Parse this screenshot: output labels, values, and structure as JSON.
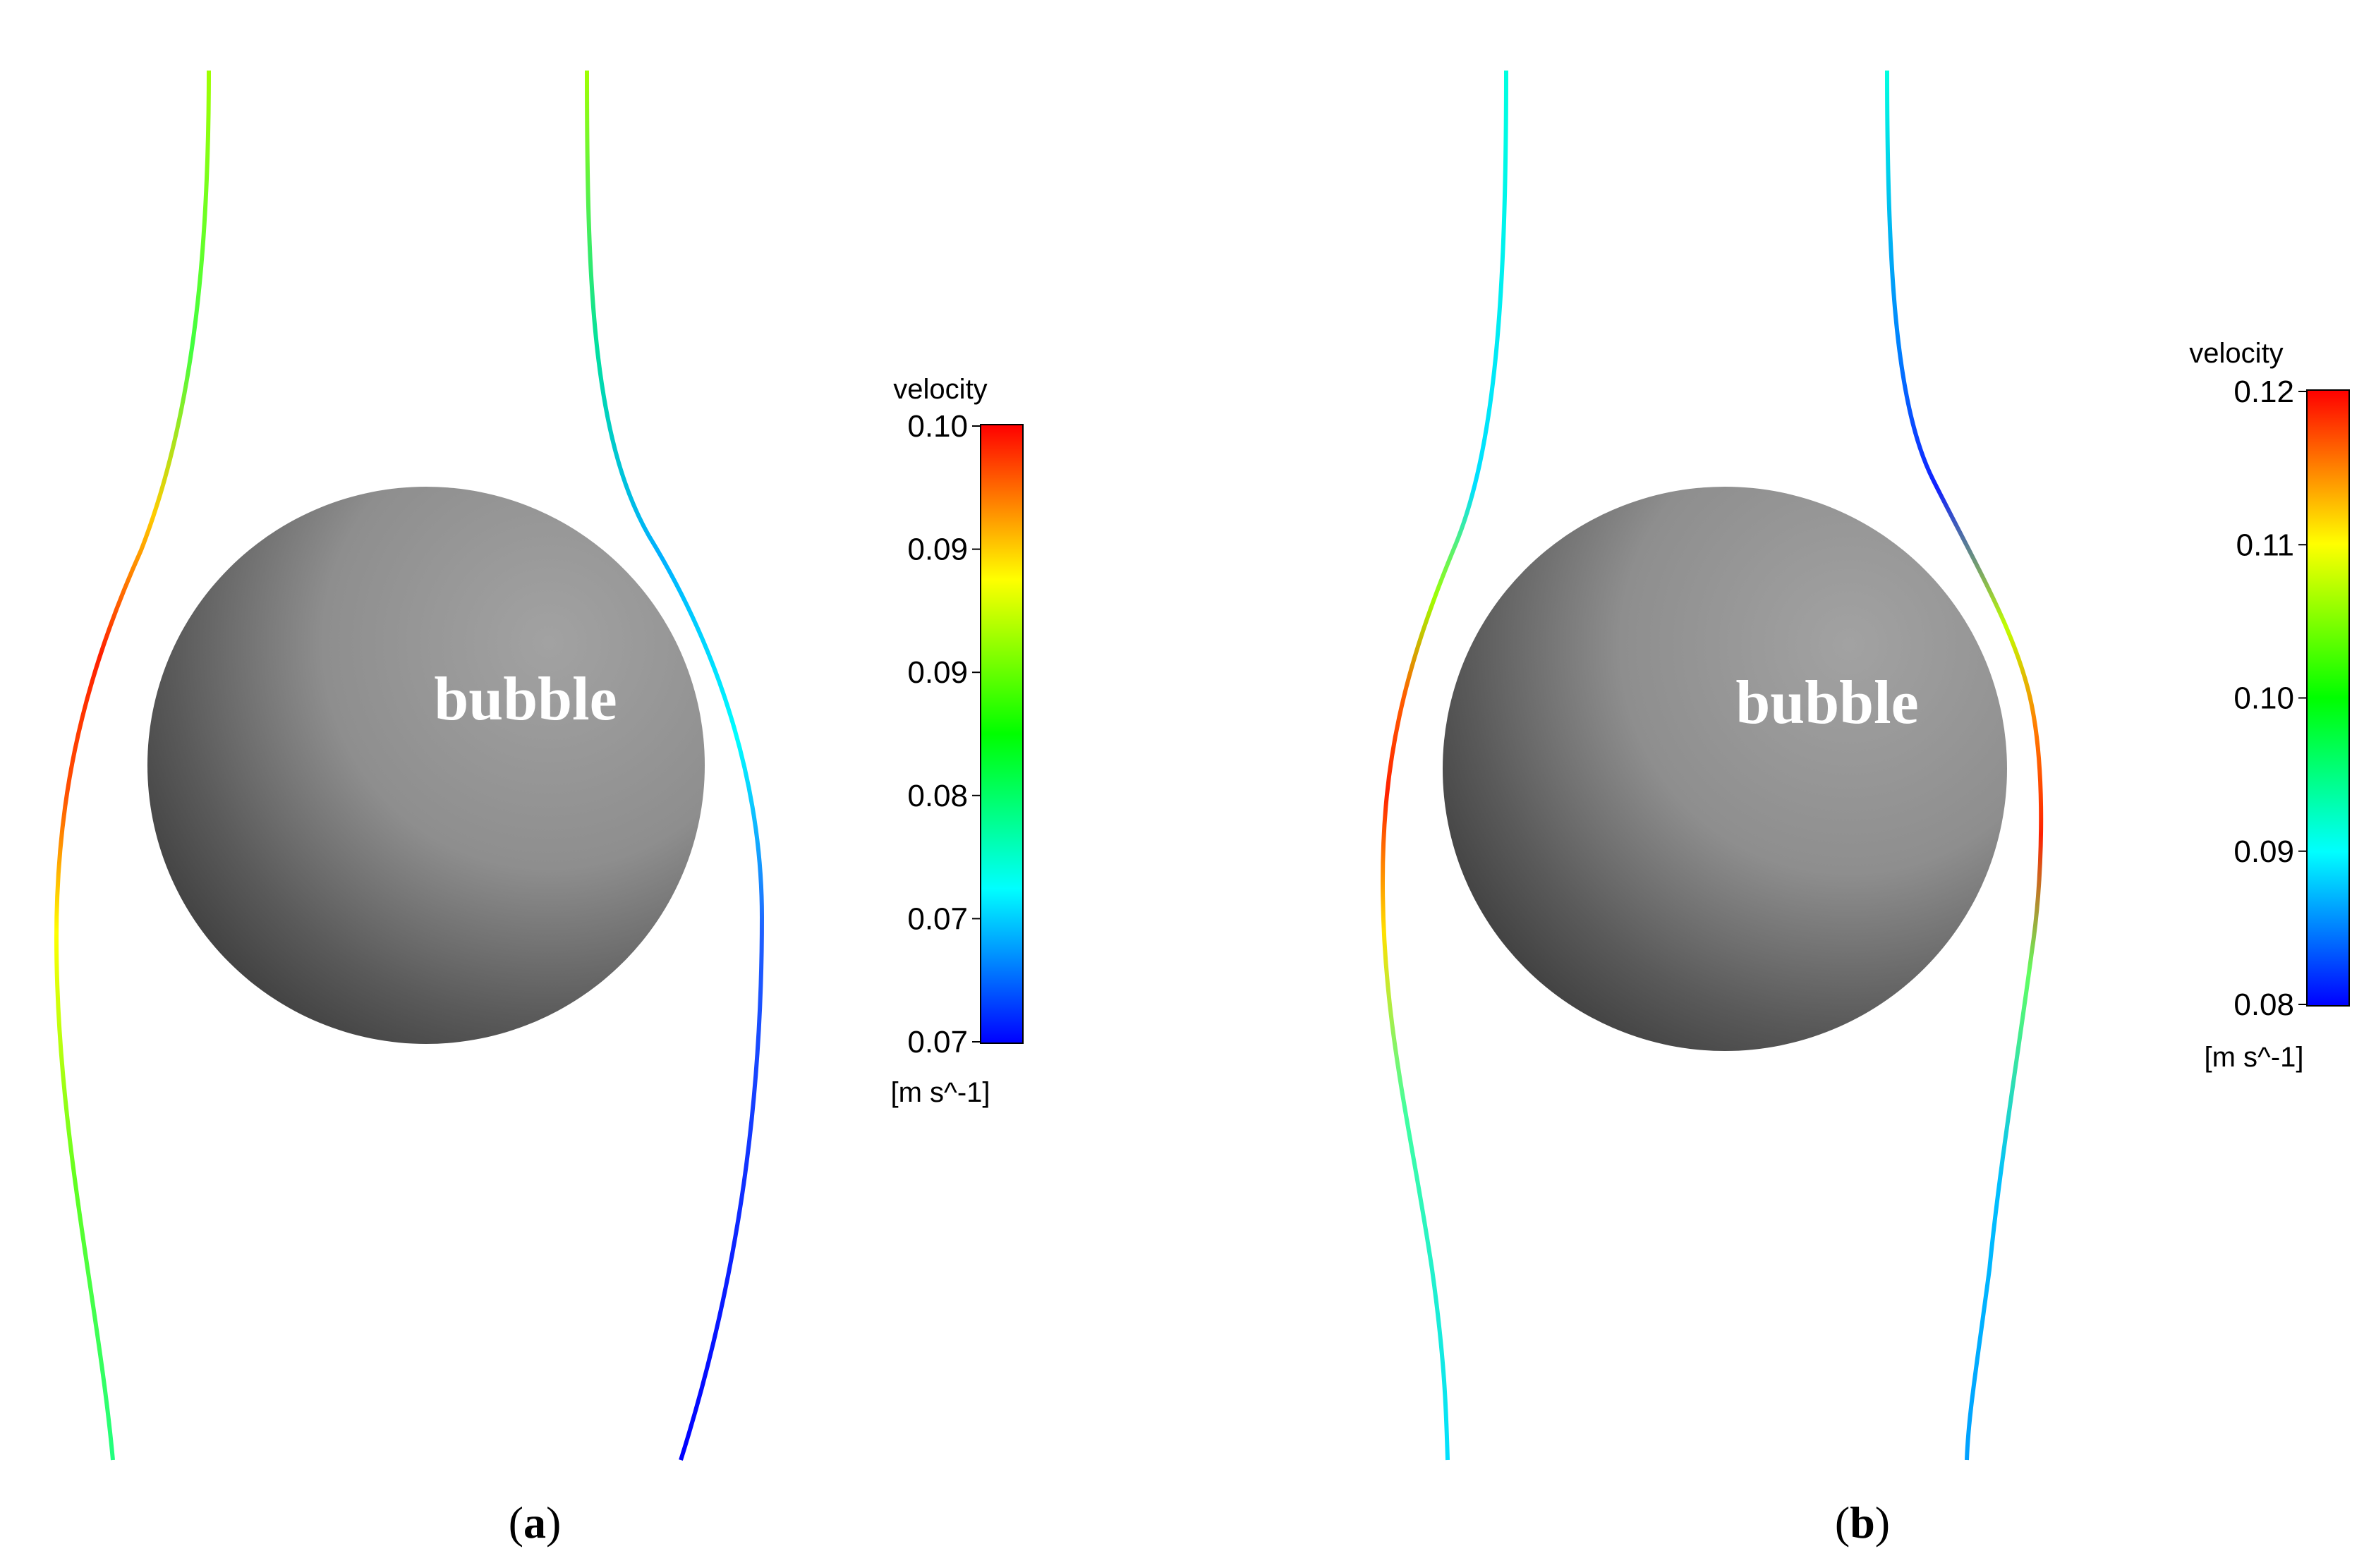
{
  "panels": [
    {
      "id": "a",
      "caption_letter": "a",
      "bubble_label": "bubble",
      "colorbar": {
        "title": "velocity",
        "unit": "[m s^-1]",
        "tick_labels": [
          "0.10",
          "0.09",
          "0.09",
          "0.08",
          "0.07",
          "0.07"
        ]
      }
    },
    {
      "id": "b",
      "caption_letter": "b",
      "bubble_label": "bubble",
      "colorbar": {
        "title": "velocity",
        "unit": "[m s^-1]",
        "tick_labels": [
          "0.12",
          "0.11",
          "0.10",
          "0.09",
          "0.08"
        ]
      }
    }
  ],
  "colors": {
    "bubble_dark": "#3a3a3a",
    "bubble_light": "#9c9c9c",
    "bubble_label": "#ffffff",
    "colormap": [
      "#0000ff",
      "#0080ff",
      "#00ffff",
      "#00ff80",
      "#00ff00",
      "#80ff00",
      "#ffff00",
      "#ff8000",
      "#ff0000"
    ]
  }
}
